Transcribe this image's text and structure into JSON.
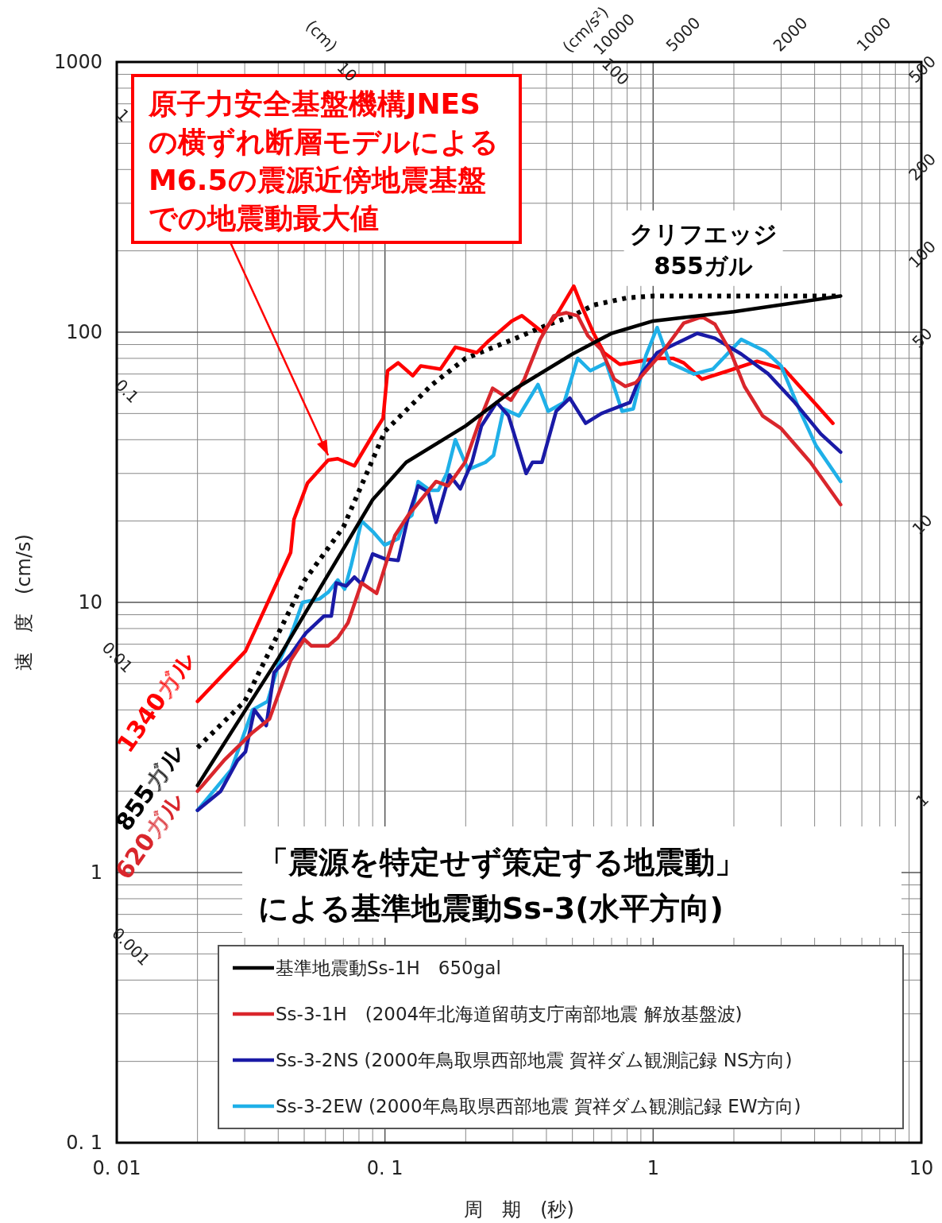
{
  "chart_data": {
    "type": "line",
    "title": "「震源を特定せず策定する地震動」",
    "subtitle": "による基準地震動Ss-3(水平方向)",
    "xlabel": "周　期　(秒)",
    "ylabel": "速　度　(cm/s)",
    "log": "xy",
    "grid": true,
    "legend": "bottom right",
    "marker": "none",
    "xlim": [
      0.01,
      10
    ],
    "ylim": [
      0.1,
      1000
    ],
    "xticks": [
      {
        "value": 0.01,
        "label": "0. 01"
      },
      {
        "value": 0.1,
        "label": "0. 1"
      },
      1,
      10
    ],
    "yticks": [
      {
        "value": 0.1,
        "label": "0. 1"
      },
      1,
      10,
      100,
      1000
    ],
    "series": [
      {
        "name": "基準地震動Ss-1H　650gal",
        "color": "#000000",
        "line_style": "solid",
        "x": [
          0.02,
          0.04,
          0.09,
          0.12,
          0.2,
          0.3,
          0.5,
          0.7,
          1,
          2,
          5
        ],
        "values": [
          2.1,
          6.2,
          24,
          33,
          45,
          61,
          83,
          99,
          110,
          119,
          136
        ]
      },
      {
        "name": "Ss-3-1H　(2004年北海道留萌支庁南部地震 解放基盤波)",
        "color": "#d9262c",
        "line_style": "solid",
        "x": [
          0.02,
          0.0251,
          0.0321,
          0.0371,
          0.0445,
          0.05,
          0.0532,
          0.0614,
          0.0667,
          0.0728,
          0.0818,
          0.0931,
          0.106,
          0.109,
          0.122,
          0.141,
          0.155,
          0.172,
          0.199,
          0.229,
          0.252,
          0.295,
          0.331,
          0.379,
          0.426,
          0.475,
          0.523,
          0.571,
          0.641,
          0.716,
          0.787,
          0.861,
          1.08,
          1.3,
          1.52,
          1.7,
          1.95,
          2.19,
          2.56,
          3.0,
          3.86,
          5
        ],
        "values": [
          2.0,
          2.6,
          3.3,
          3.7,
          6.1,
          7.3,
          6.9,
          6.9,
          7.4,
          8.4,
          11.8,
          10.8,
          16.3,
          17.7,
          21,
          25,
          28,
          27,
          33,
          49,
          62,
          56,
          67,
          94,
          115,
          118,
          115,
          97,
          86,
          67,
          63,
          65,
          84,
          108,
          114,
          107,
          84,
          63,
          49,
          44,
          33,
          23
        ]
      },
      {
        "name": "Ss-3-2NS (2000年鳥取県西部地震 賀祥ダム観測記録 NS方向)",
        "color": "#1a1aa6",
        "line_style": "solid",
        "x": [
          0.02,
          0.0244,
          0.0282,
          0.0302,
          0.0326,
          0.0361,
          0.0386,
          0.0445,
          0.0507,
          0.0593,
          0.0631,
          0.0658,
          0.0718,
          0.0769,
          0.0818,
          0.09,
          0.0997,
          0.112,
          0.122,
          0.133,
          0.145,
          0.155,
          0.174,
          0.191,
          0.211,
          0.229,
          0.261,
          0.289,
          0.336,
          0.355,
          0.385,
          0.435,
          0.489,
          0.56,
          0.641,
          0.82,
          0.903,
          1.035,
          1.46,
          1.7,
          2.13,
          2.69,
          3.37,
          4.22,
          5
        ],
        "values": [
          1.7,
          2.0,
          2.6,
          2.8,
          4.0,
          3.5,
          5.5,
          6.4,
          7.7,
          8.9,
          8.9,
          11.8,
          11.5,
          12.4,
          11.7,
          15.1,
          14.5,
          14.3,
          20.7,
          27,
          25.6,
          19.8,
          29.6,
          26.3,
          33,
          45,
          55,
          49,
          30,
          33,
          33,
          51,
          57,
          46,
          50,
          55,
          70,
          84,
          99,
          95,
          83,
          70,
          55,
          42,
          36
        ]
      },
      {
        "name": "Ss-3-2EW (2000年鳥取県西部地震 賀祥ダム観測記録 EW方向)",
        "color": "#1fb0e8",
        "line_style": "solid",
        "x": [
          0.02,
          0.0267,
          0.0321,
          0.0365,
          0.0405,
          0.0445,
          0.0493,
          0.057,
          0.0614,
          0.0667,
          0.0708,
          0.0748,
          0.0818,
          0.09,
          0.0997,
          0.112,
          0.118,
          0.126,
          0.133,
          0.147,
          0.158,
          0.17,
          0.183,
          0.204,
          0.237,
          0.254,
          0.277,
          0.316,
          0.372,
          0.406,
          0.466,
          0.523,
          0.583,
          0.668,
          0.766,
          0.843,
          0.94,
          1.035,
          1.153,
          1.42,
          1.67,
          2.13,
          2.62,
          3.0,
          3.53,
          4.05,
          5
        ],
        "values": [
          1.7,
          2.4,
          4.0,
          4.3,
          6.1,
          7.5,
          10,
          10.3,
          10.9,
          12.1,
          11.2,
          13.7,
          20,
          18.3,
          16.3,
          17.2,
          20,
          21,
          28,
          26,
          26,
          30,
          40,
          31,
          33,
          35,
          52,
          49,
          64,
          51,
          55,
          80,
          72,
          77,
          51,
          52,
          82,
          104,
          77,
          70,
          73,
          94,
          85,
          75,
          51,
          38,
          28
        ]
      },
      {
        "color": "#ff0000",
        "line_style": "solid",
        "x": [
          0.02,
          0.0302,
          0.0445,
          0.0458,
          0.0514,
          0.0614,
          0.0667,
          0.0769,
          0.0931,
          0.0984,
          0.1023,
          0.112,
          0.127,
          0.136,
          0.161,
          0.183,
          0.22,
          0.244,
          0.297,
          0.324,
          0.387,
          0.435,
          0.506,
          0.545,
          0.6,
          0.655,
          0.751,
          1.035,
          1.186,
          1.3,
          1.52,
          1.91,
          2.44,
          3.08,
          3.68,
          4.68
        ],
        "values": [
          4.3,
          6.6,
          15.3,
          20.3,
          27.6,
          33.6,
          34,
          32,
          44,
          48,
          72,
          77,
          69,
          75,
          73,
          88,
          84,
          93,
          110,
          115,
          100,
          115,
          148,
          123,
          99,
          84,
          76,
          80,
          80,
          77,
          67,
          72,
          78,
          73,
          60,
          46
        ]
      },
      {
        "color": "#000000",
        "line_style": "dotted",
        "x": [
          0.02,
          0.03,
          0.05,
          0.07,
          0.1,
          0.15,
          0.2,
          0.3,
          0.4,
          0.5,
          0.6,
          0.8,
          1,
          5
        ],
        "values": [
          2.9,
          4.3,
          12,
          19,
          43,
          64,
          80,
          94,
          106,
          115,
          126,
          134,
          136,
          136
        ]
      }
    ],
    "annotations": [
      {
        "text": "原子力安全基盤機構JNESの横ずれ断層モデルによるM6.5の震源近傍地震基盤での地震動最大値",
        "x": 0.0614,
        "y": 33.6
      },
      {
        "text": "クリフエッジ855ガル",
        "x": 0.8,
        "y": 134
      },
      {
        "text": "1340ガル",
        "x": 0.02,
        "y": 4.3
      },
      {
        "text": "855ガル",
        "x": 0.02,
        "y": 2.9
      },
      {
        "text": "620ガル",
        "x": 0.02,
        "y": 2.0
      },
      "(cm)",
      "100",
      "10",
      "1",
      "0.1",
      "0.01",
      "0.001",
      "(cm/s²)",
      "10000",
      "5000",
      "2000",
      "1000",
      "500",
      "200",
      "100",
      "50",
      "10",
      "1"
    ]
  }
}
